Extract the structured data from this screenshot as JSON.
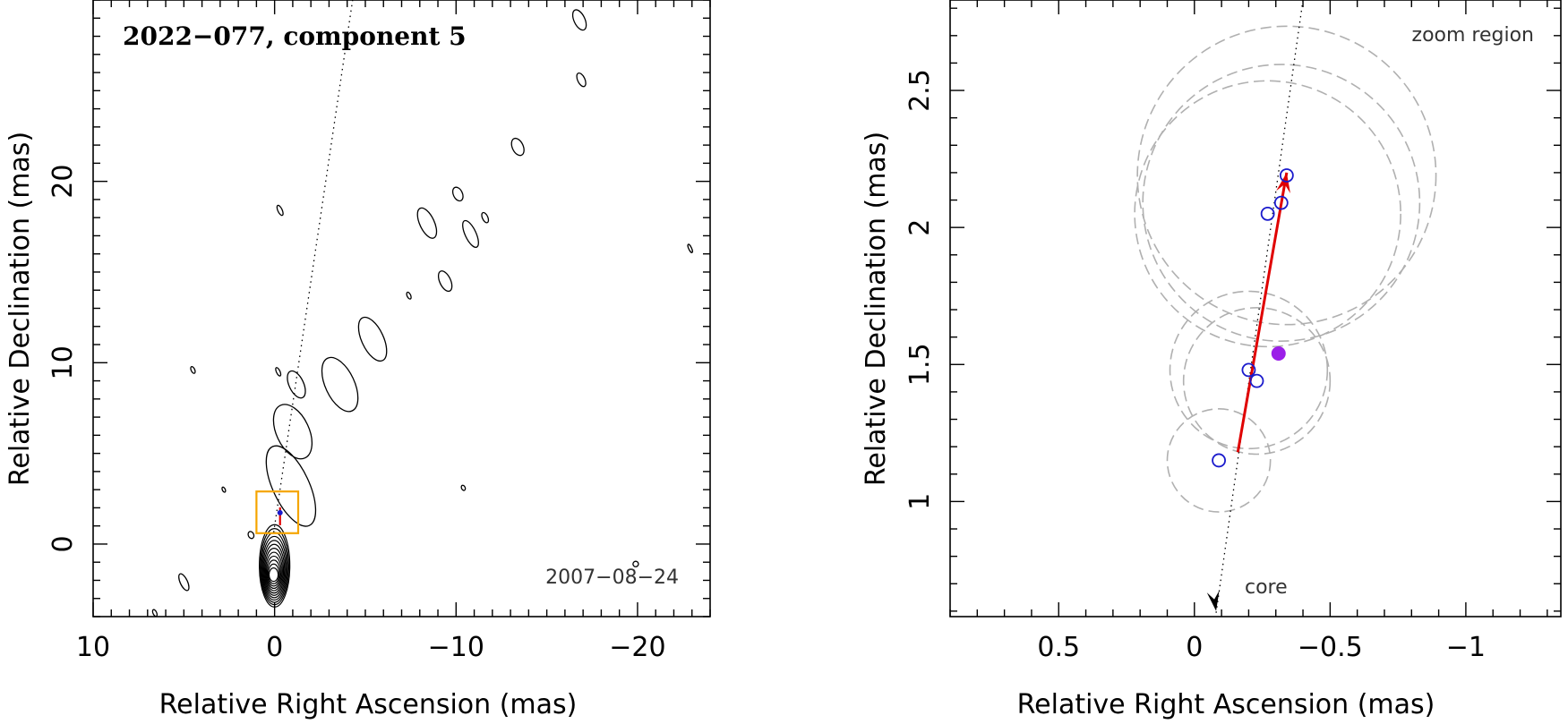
{
  "chart_data": [
    {
      "type": "contour",
      "title": "2022−077, component 5",
      "date_label": "2007−08−24",
      "xlabel": "Relative Right Ascension (mas)",
      "ylabel": "Relative Declination (mas)",
      "xlim": [
        10,
        -24
      ],
      "ylim": [
        -4,
        30
      ],
      "x_ticks": [
        {
          "value": 10,
          "label": "10"
        },
        {
          "value": 0,
          "label": "0"
        },
        {
          "value": -10,
          "label": "−10"
        },
        {
          "value": -20,
          "label": "−20"
        }
      ],
      "y_ticks": [
        {
          "value": 0,
          "label": "0"
        },
        {
          "value": 10,
          "label": "10"
        },
        {
          "value": 20,
          "label": "20"
        }
      ],
      "core_contours": {
        "x": 0,
        "y": -1.2,
        "levels": 12
      },
      "jet_blobs": [
        {
          "x": -0.9,
          "y": 3.2,
          "rx": 1.0,
          "ry": 2.4
        },
        {
          "x": -1.0,
          "y": 6.2,
          "rx": 0.9,
          "ry": 1.6
        },
        {
          "x": -1.2,
          "y": 8.8,
          "rx": 0.4,
          "ry": 0.8
        },
        {
          "x": -3.6,
          "y": 8.8,
          "rx": 0.8,
          "ry": 1.6
        },
        {
          "x": -5.4,
          "y": 11.3,
          "rx": 0.6,
          "ry": 1.3
        },
        {
          "x": -8.4,
          "y": 17.7,
          "rx": 0.4,
          "ry": 0.9
        },
        {
          "x": -10.8,
          "y": 17.1,
          "rx": 0.3,
          "ry": 0.8
        },
        {
          "x": -9.4,
          "y": 14.5,
          "rx": 0.3,
          "ry": 0.6
        },
        {
          "x": -10.1,
          "y": 19.3,
          "rx": 0.25,
          "ry": 0.4
        },
        {
          "x": -11.6,
          "y": 18.0,
          "rx": 0.15,
          "ry": 0.3
        },
        {
          "x": -13.4,
          "y": 21.9,
          "rx": 0.3,
          "ry": 0.5
        },
        {
          "x": -16.9,
          "y": 25.6,
          "rx": 0.2,
          "ry": 0.4
        },
        {
          "x": -16.8,
          "y": 28.9,
          "rx": 0.3,
          "ry": 0.6
        },
        {
          "x": -0.3,
          "y": 18.4,
          "rx": 0.12,
          "ry": 0.3
        },
        {
          "x": -7.4,
          "y": 13.7,
          "rx": 0.1,
          "ry": 0.2
        },
        {
          "x": 4.5,
          "y": 9.6,
          "rx": 0.1,
          "ry": 0.2
        },
        {
          "x": 2.8,
          "y": 3.0,
          "rx": 0.08,
          "ry": 0.15
        },
        {
          "x": 1.3,
          "y": 0.5,
          "rx": 0.15,
          "ry": 0.2
        },
        {
          "x": -10.4,
          "y": 3.1,
          "rx": 0.1,
          "ry": 0.15
        },
        {
          "x": 5.0,
          "y": -2.1,
          "rx": 0.2,
          "ry": 0.5
        },
        {
          "x": 6.6,
          "y": -3.8,
          "rx": 0.1,
          "ry": 0.2
        },
        {
          "x": -0.2,
          "y": 9.5,
          "rx": 0.1,
          "ry": 0.25
        },
        {
          "x": -22.9,
          "y": 16.3,
          "rx": 0.08,
          "ry": 0.25
        },
        {
          "x": -19.9,
          "y": -1.1,
          "rx": 0.15,
          "ry": 0.15
        }
      ],
      "direction_line": {
        "x1": 0.05,
        "y1": 0.65,
        "x2": -4.3,
        "y2": 30
      },
      "zoom_box": {
        "x": [
          1.0,
          -1.3
        ],
        "y": [
          0.6,
          2.9
        ],
        "color": "#f5a500"
      },
      "marker": {
        "x": -0.3,
        "y": 1.53,
        "color": "#e00000"
      }
    },
    {
      "type": "scatter",
      "xlabel": "Relative Right Ascension (mas)",
      "ylabel": "Relative Declination (mas)",
      "xlim": [
        0.9,
        -1.35
      ],
      "ylim": [
        0.58,
        2.83
      ],
      "annotation_zoom": "zoom region",
      "annotation_core": "core",
      "x_ticks": [
        {
          "value": 0.5,
          "label": "0.5"
        },
        {
          "value": 0,
          "label": "0"
        },
        {
          "value": -0.5,
          "label": "−0.5"
        },
        {
          "value": -1,
          "label": "−1"
        }
      ],
      "y_ticks": [
        {
          "value": 1,
          "label": "1"
        },
        {
          "value": 1.5,
          "label": "1.5"
        },
        {
          "value": 2,
          "label": "2"
        },
        {
          "value": 2.5,
          "label": "2.5"
        }
      ],
      "epoch_points": [
        {
          "x": -0.09,
          "y": 1.15,
          "r": 0.19
        },
        {
          "x": -0.2,
          "y": 1.48,
          "r": 0.29
        },
        {
          "x": -0.23,
          "y": 1.44,
          "r": 0.27
        },
        {
          "x": -0.27,
          "y": 2.05,
          "r": 0.49
        },
        {
          "x": -0.32,
          "y": 2.09,
          "r": 0.51
        },
        {
          "x": -0.34,
          "y": 2.19,
          "r": 0.55
        }
      ],
      "mean_position": {
        "x": -0.31,
        "y": 1.54,
        "color": "#9b1fe8"
      },
      "velocity_arrow": {
        "x1": -0.16,
        "y1": 1.18,
        "x2": -0.34,
        "y2": 2.2,
        "color": "#e00000"
      },
      "jet_axis": {
        "x1": -0.08,
        "y1": 0.62,
        "x2": -0.4,
        "y2": 2.83
      },
      "circle_color": "#b0b0b0",
      "point_color": "#1a1acc"
    }
  ]
}
